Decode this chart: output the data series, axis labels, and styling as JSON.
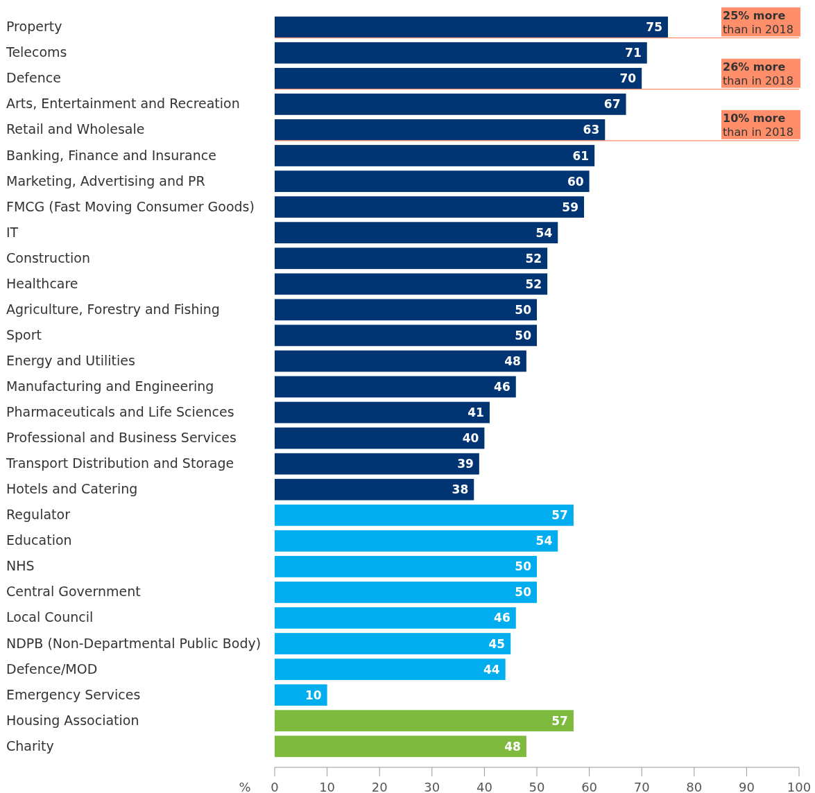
{
  "chart_data": {
    "type": "bar",
    "orientation": "horizontal",
    "xlabel": "%",
    "categories": [
      "Property",
      "Telecoms",
      "Defence",
      "Arts, Entertainment and Recreation",
      "Retail and Wholesale",
      "Banking, Finance and Insurance",
      "Marketing, Advertising and PR",
      "FMCG (Fast Moving Consumer Goods)",
      "IT",
      "Construction",
      "Healthcare",
      "Agriculture, Forestry and Fishing",
      "Sport",
      "Energy and Utilities",
      "Manufacturing and Engineering",
      "Pharmaceuticals and Life Sciences",
      "Professional and Business Services",
      "Transport Distribution and Storage",
      "Hotels and Catering",
      "Regulator",
      "Education",
      "NHS",
      "Central Government",
      "Local Council",
      "NDPB (Non-Departmental Public Body)",
      "Defence/MOD",
      "Emergency Services",
      "Housing Association",
      "Charity"
    ],
    "values": [
      75,
      71,
      70,
      67,
      63,
      61,
      60,
      59,
      54,
      52,
      52,
      50,
      50,
      48,
      46,
      41,
      40,
      39,
      38,
      57,
      54,
      50,
      50,
      46,
      45,
      44,
      10,
      57,
      48
    ],
    "colors": [
      "#003473",
      "#003473",
      "#003473",
      "#003473",
      "#003473",
      "#003473",
      "#003473",
      "#003473",
      "#003473",
      "#003473",
      "#003473",
      "#003473",
      "#003473",
      "#003473",
      "#003473",
      "#003473",
      "#003473",
      "#003473",
      "#003473",
      "#00aeef",
      "#00aeef",
      "#00aeef",
      "#00aeef",
      "#00aeef",
      "#00aeef",
      "#00aeef",
      "#00aeef",
      "#7dba3e",
      "#7dba3e"
    ],
    "data_labels": true,
    "xlim": [
      0,
      100
    ],
    "xticks": [
      0,
      10,
      20,
      30,
      40,
      50,
      60,
      70,
      80,
      90,
      100
    ],
    "annotations": [
      "25% more than in 2018",
      "26% more than in 2018",
      "10% more than in 2018"
    ]
  }
}
